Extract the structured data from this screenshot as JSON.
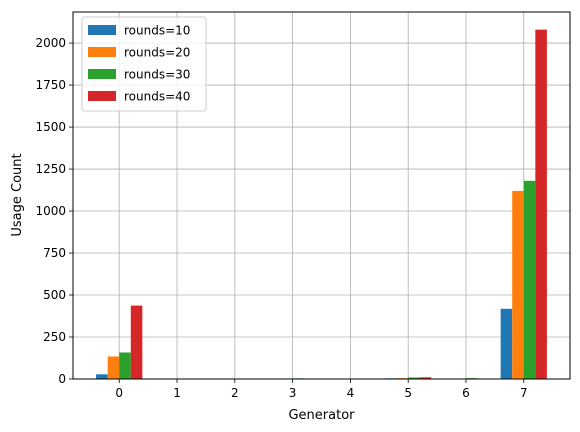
{
  "chart_data": {
    "type": "bar",
    "title": "",
    "xlabel": "Generator",
    "ylabel": "Usage Count",
    "categories": [
      "0",
      "1",
      "2",
      "3",
      "4",
      "5",
      "6",
      "7"
    ],
    "series": [
      {
        "name": "rounds=10",
        "color": "#1f77b4",
        "values": [
          28,
          0,
          0,
          0,
          0,
          4,
          0,
          418
        ]
      },
      {
        "name": "rounds=20",
        "color": "#ff7f0e",
        "values": [
          134,
          0,
          0,
          0,
          0,
          5,
          0,
          1120
        ]
      },
      {
        "name": "rounds=30",
        "color": "#2ca02c",
        "values": [
          158,
          0,
          0,
          4,
          0,
          9,
          5,
          1180
        ]
      },
      {
        "name": "rounds=40",
        "color": "#d62728",
        "values": [
          437,
          0,
          0,
          0,
          0,
          10,
          0,
          2080
        ]
      }
    ],
    "ylim": [
      0,
      2185
    ],
    "yticks": [
      "0",
      "250",
      "500",
      "750",
      "1000",
      "1250",
      "1500",
      "1750",
      "2000"
    ],
    "grid": true,
    "legend": "top-left"
  }
}
